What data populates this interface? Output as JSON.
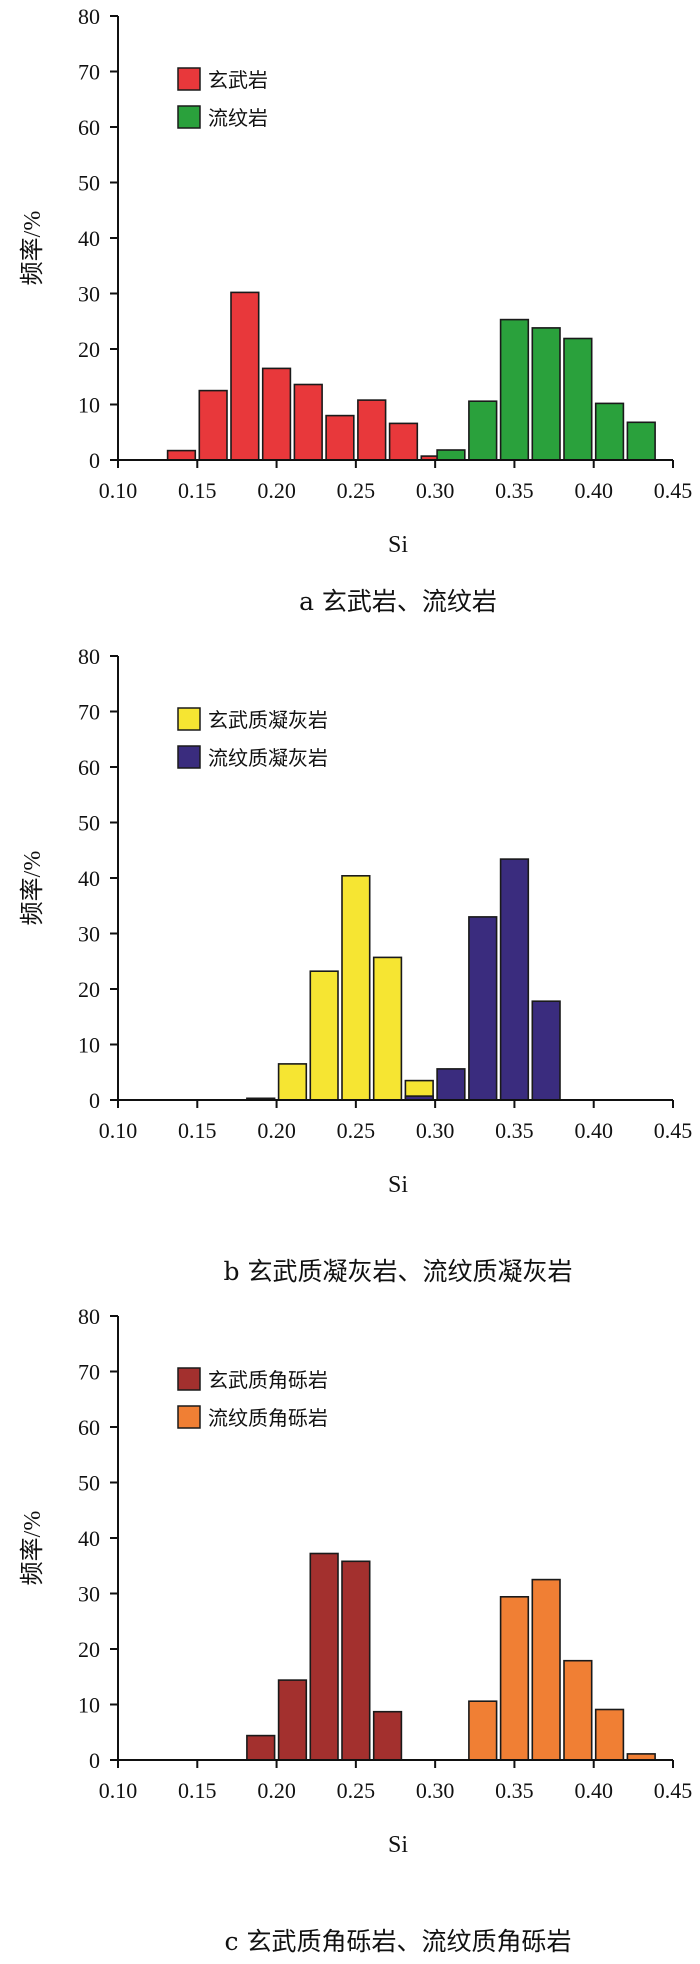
{
  "chart_data": [
    {
      "type": "bar",
      "caption": "a  玄武岩、流纹岩",
      "xlabel": "Si",
      "ylabel": "频率/%",
      "xlim": [
        0.1,
        0.45
      ],
      "ylim": [
        0,
        80
      ],
      "x_ticks": [
        "0.10",
        "0.15",
        "0.20",
        "0.25",
        "0.30",
        "0.35",
        "0.40",
        "0.45"
      ],
      "y_ticks": [
        "0",
        "10",
        "20",
        "30",
        "40",
        "50",
        "60",
        "70",
        "80"
      ],
      "bin_width": 0.02,
      "legend_position": "top-left",
      "series": [
        {
          "name": "玄武岩",
          "color": "#e8383b",
          "x": [
            0.14,
            0.16,
            0.18,
            0.2,
            0.22,
            0.24,
            0.26,
            0.28,
            0.3
          ],
          "values": [
            1.7,
            12.5,
            30.2,
            16.5,
            13.6,
            8.0,
            10.8,
            6.6,
            0.7
          ]
        },
        {
          "name": "流纹岩",
          "color": "#2aa13c",
          "x": [
            0.31,
            0.33,
            0.35,
            0.37,
            0.39,
            0.41,
            0.43
          ],
          "values": [
            1.8,
            10.6,
            25.3,
            23.8,
            21.9,
            10.2,
            6.8
          ]
        }
      ]
    },
    {
      "type": "bar",
      "caption": "b  玄武质凝灰岩、流纹质凝灰岩",
      "xlabel": "Si",
      "ylabel": "频率/%",
      "xlim": [
        0.1,
        0.45
      ],
      "ylim": [
        0,
        80
      ],
      "x_ticks": [
        "0.10",
        "0.15",
        "0.20",
        "0.25",
        "0.30",
        "0.35",
        "0.40",
        "0.45"
      ],
      "y_ticks": [
        "0",
        "10",
        "20",
        "30",
        "40",
        "50",
        "60",
        "70",
        "80"
      ],
      "bin_width": 0.02,
      "legend_position": "top-left",
      "series": [
        {
          "name": "玄武质凝灰岩",
          "color": "#f6e532",
          "x": [
            0.19,
            0.21,
            0.23,
            0.25,
            0.27,
            0.29
          ],
          "values": [
            0.3,
            6.5,
            23.2,
            40.4,
            25.7,
            3.5
          ]
        },
        {
          "name": "流纹质凝灰岩",
          "color": "#3a2c7e",
          "x": [
            0.29,
            0.31,
            0.33,
            0.35,
            0.37
          ],
          "values": [
            0.7,
            5.6,
            33.0,
            43.4,
            17.8
          ]
        }
      ]
    },
    {
      "type": "bar",
      "caption": "c  玄武质角砾岩、流纹质角砾岩",
      "xlabel": "Si",
      "ylabel": "频率/%",
      "xlim": [
        0.1,
        0.45
      ],
      "ylim": [
        0,
        80
      ],
      "x_ticks": [
        "0.10",
        "0.15",
        "0.20",
        "0.25",
        "0.30",
        "0.35",
        "0.40",
        "0.45"
      ],
      "y_ticks": [
        "0",
        "10",
        "20",
        "30",
        "40",
        "50",
        "60",
        "70",
        "80"
      ],
      "bin_width": 0.02,
      "legend_position": "top-left",
      "series": [
        {
          "name": "玄武质角砾岩",
          "color": "#a3302e",
          "x": [
            0.19,
            0.21,
            0.23,
            0.25,
            0.27
          ],
          "values": [
            4.4,
            14.4,
            37.2,
            35.8,
            8.7
          ]
        },
        {
          "name": "流纹质角砾岩",
          "color": "#f07f34",
          "x": [
            0.33,
            0.35,
            0.37,
            0.39,
            0.41,
            0.43
          ],
          "values": [
            10.6,
            29.4,
            32.5,
            17.9,
            9.1,
            1.1
          ]
        }
      ]
    }
  ]
}
